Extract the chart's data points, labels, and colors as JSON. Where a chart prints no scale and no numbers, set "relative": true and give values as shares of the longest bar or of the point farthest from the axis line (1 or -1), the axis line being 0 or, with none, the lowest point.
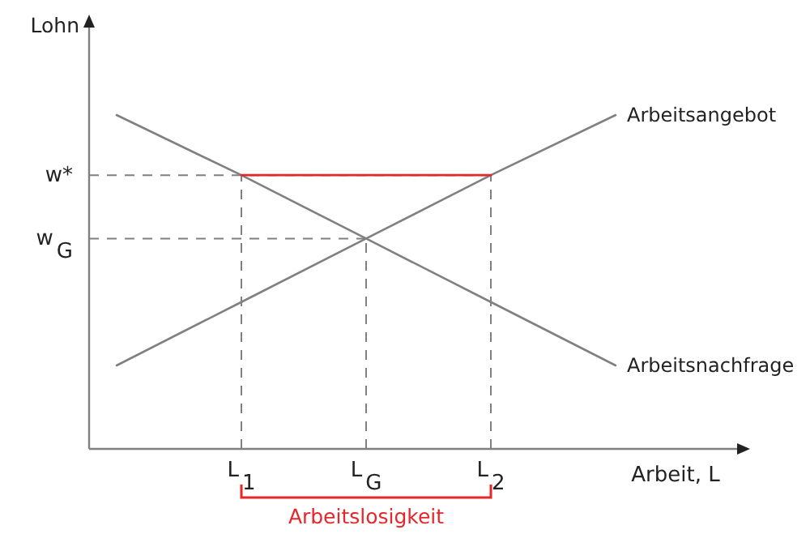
{
  "chart_data": {
    "type": "line",
    "relative": true,
    "xlabel": "Arbeit, L",
    "ylabel": "Lohn",
    "categories": [
      null,
      "L$_{1}$",
      "L$_{G}$",
      "L$_{2}$",
      null
    ],
    "grid": false,
    "marker": "none",
    "annotations": [
      "Arbeitslosigkeit"
    ],
    "ref_lines": [
      {
        "axis": "y",
        "value": 0.82,
        "label": "w*",
        "color": "#808080",
        "line_style": "dashed"
      },
      {
        "axis": "y",
        "value": 0.63,
        "label": "w$_{G}$",
        "color": "#808080",
        "line_style": "dashed"
      },
      {
        "axis": "x",
        "value": "L$_{1}$",
        "color": "#808080",
        "line_style": "dashed"
      },
      {
        "axis": "x",
        "value": "L$_{G}$",
        "color": "#808080",
        "line_style": "dashed"
      },
      {
        "axis": "x",
        "value": "L$_{2}$",
        "color": "#808080",
        "line_style": "dashed"
      }
    ],
    "series": [
      {
        "name": "Arbeitsangebot",
        "color": "#808080",
        "values": [
          0.25,
          0.44,
          0.63,
          0.82,
          1.0
        ]
      },
      {
        "name": "Arbeitsnachfrage",
        "color": "#808080",
        "values": [
          1.0,
          0.82,
          0.63,
          0.44,
          0.25
        ]
      },
      {
        "color": "#e8262a",
        "values": [
          null,
          0.82,
          0.82,
          0.82,
          null
        ]
      }
    ]
  }
}
